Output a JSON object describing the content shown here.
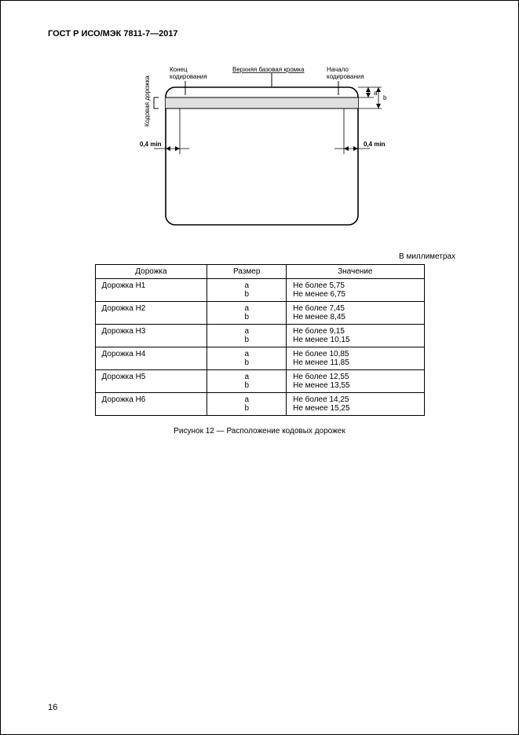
{
  "doc": {
    "title": "ГОСТ Р ИСО/МЭК 7811-7—2017",
    "page_number": "16"
  },
  "diagram": {
    "vertical_label": "Кодовая дорожка",
    "label_end": "Конец\nкодирования",
    "label_top_edge": "Верхняя базовая кромка",
    "label_start": "Начало\nкодирования",
    "dim_left": "0,4 min",
    "dim_right": "0,4 min",
    "dim_a": "a",
    "dim_b": "b",
    "stroke": "#000000",
    "fill": "#ffffff",
    "line_width_thin": 1,
    "line_width_thick": 1.6
  },
  "units_note": "В миллиметрах",
  "table": {
    "headers": [
      "Дорожка",
      "Размер",
      "Значение"
    ],
    "rows": [
      {
        "track": "Дорожка H1",
        "sizes": [
          "a",
          "b"
        ],
        "values": [
          "Не более 5,75",
          "Не менее 6,75"
        ]
      },
      {
        "track": "Дорожка H2",
        "sizes": [
          "a",
          "b"
        ],
        "values": [
          "Не более 7,45",
          "Не менее 8,45"
        ]
      },
      {
        "track": "Дорожка H3",
        "sizes": [
          "a",
          "b"
        ],
        "values": [
          "Не более 9,15",
          "Не менее 10,15"
        ]
      },
      {
        "track": "Дорожка H4",
        "sizes": [
          "a",
          "b"
        ],
        "values": [
          "Не более 10,85",
          "Не менее 11,85"
        ]
      },
      {
        "track": "Дорожка H5",
        "sizes": [
          "a",
          "b"
        ],
        "values": [
          "Не более 12,55",
          "Не менее 13,55"
        ]
      },
      {
        "track": "Дорожка H6",
        "sizes": [
          "a",
          "b"
        ],
        "values": [
          "Не более 14,25",
          "Не менее 15,25"
        ]
      }
    ]
  },
  "caption": "Рисунок 12 — Расположение кодовых дорожек"
}
